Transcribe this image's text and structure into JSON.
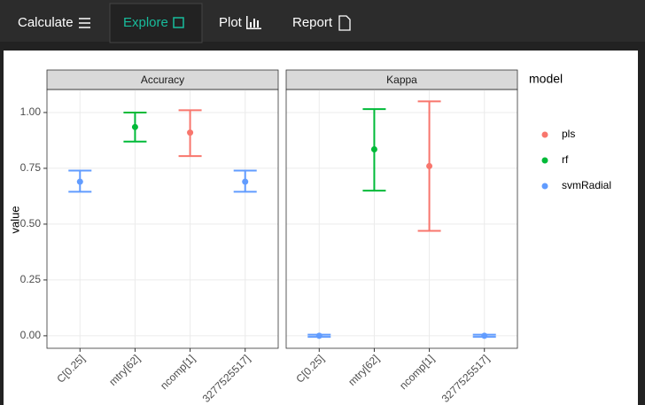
{
  "nav": {
    "tabs": [
      "Calculate",
      "Explore",
      "Plot",
      "Report"
    ],
    "active": 1
  },
  "legend": {
    "title": "model",
    "items": [
      {
        "name": "pls",
        "color": "#F8766D"
      },
      {
        "name": "rf",
        "color": "#00BA38"
      },
      {
        "name": "svmRadial",
        "color": "#619CFF"
      }
    ]
  },
  "chart_data": [
    {
      "type": "errorbar",
      "title": "Accuracy",
      "ylabel": "value",
      "categories": [
        "C[0.25]",
        "mtry[62]",
        "ncomp[1]",
        "3277525517]"
      ],
      "values": [
        0.69,
        0.935,
        0.91,
        0.69
      ],
      "lower": [
        0.645,
        0.87,
        0.805,
        0.645
      ],
      "upper": [
        0.74,
        1.0,
        1.01,
        0.74
      ],
      "model": [
        "svmRadial",
        "rf",
        "pls",
        "svmRadial"
      ],
      "ylim": [
        -0.056,
        1.103
      ],
      "yticks": [
        {
          "value": 0,
          "label": "0.00"
        },
        {
          "value": 0.25,
          "label": "0.25"
        },
        {
          "value": 0.5,
          "label": "0.50"
        },
        {
          "value": 0.75,
          "label": "0.75"
        },
        {
          "value": 1,
          "label": "1.00"
        }
      ],
      "grid": true
    },
    {
      "type": "errorbar",
      "title": "Kappa",
      "categories": [
        "C[0.25]",
        "mtry[62]",
        "ncomp[1]",
        "3277525517]"
      ],
      "values": [
        0,
        0.835,
        0.76,
        0
      ],
      "lower": [
        -0.005,
        0.65,
        0.47,
        -0.005
      ],
      "upper": [
        0.005,
        1.015,
        1.05,
        0.005
      ],
      "model": [
        "svmRadial",
        "rf",
        "pls",
        "svmRadial"
      ],
      "ylim": [
        -0.056,
        1.103
      ],
      "yticks": [
        0,
        0.25,
        0.5,
        0.75,
        1
      ],
      "grid": true
    }
  ]
}
